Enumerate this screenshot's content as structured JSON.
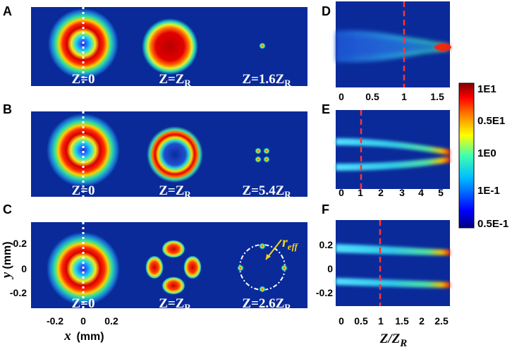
{
  "panels": {
    "A": {
      "label": "A",
      "frames": [
        {
          "z": "Z=0"
        },
        {
          "z": "Z=Z_R"
        },
        {
          "z": "Z=1.6Z_R"
        }
      ]
    },
    "B": {
      "label": "B",
      "frames": [
        {
          "z": "Z=0"
        },
        {
          "z": "Z=Z_R"
        },
        {
          "z": "Z=5.4Z_R"
        }
      ]
    },
    "C": {
      "label": "C",
      "frames": [
        {
          "z": "Z=0"
        },
        {
          "z": "Z=Z_R"
        },
        {
          "z": "Z=2.6Z_R"
        }
      ],
      "annotation": "r_eff",
      "yticks": [
        "0.2",
        "0",
        "-0.2"
      ],
      "xticks": [
        "-0.2",
        "0",
        "0.2"
      ],
      "xlabel": "x",
      "xunit": "(mm)",
      "ylabel": "y",
      "yunit": "(mm)"
    },
    "D": {
      "label": "D",
      "xticks": [
        "0",
        "0.5",
        "1",
        "1.5"
      ]
    },
    "E": {
      "label": "E",
      "xticks": [
        "0",
        "1",
        "2",
        "3",
        "4",
        "5"
      ]
    },
    "F": {
      "label": "F",
      "xticks": [
        "0",
        "0.5",
        "1",
        "1.5",
        "2",
        "2.5"
      ],
      "yticks": [
        "0.2",
        "0",
        "-0.2"
      ]
    }
  },
  "right_xlabel": "Z/Z_R",
  "colorbar": {
    "labels": [
      "1E1",
      "0.5E1",
      "1E0",
      "1E-1",
      "0.5E-1"
    ],
    "colormap": [
      "#00007f",
      "#0000ff",
      "#00bfff",
      "#40ffb0",
      "#ffff00",
      "#ff7f00",
      "#ff0000",
      "#7f0000"
    ]
  },
  "colors": {
    "background": "#0a2a9a",
    "marker_red": "#ff3333",
    "annotation": "#f5d31a"
  }
}
